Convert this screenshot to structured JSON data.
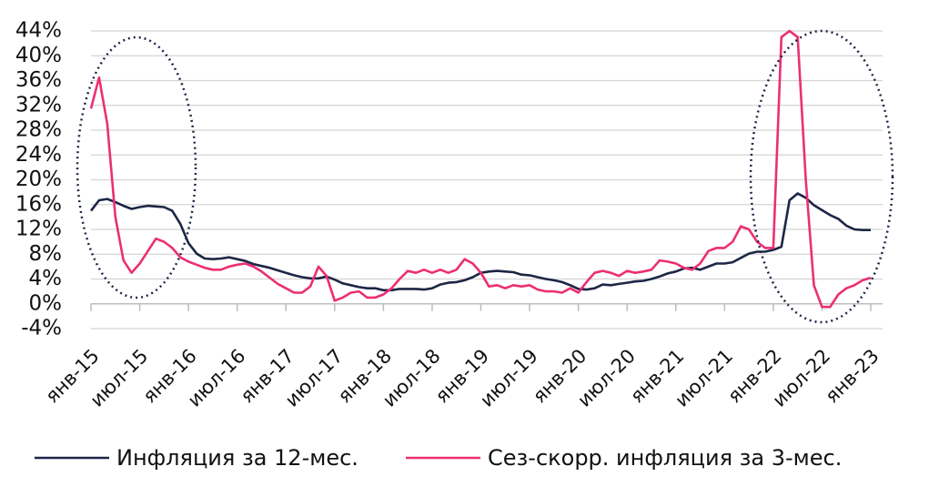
{
  "chart_data": {
    "type": "line",
    "categories": [
      "янв-15",
      null,
      null,
      null,
      null,
      null,
      "июл-15",
      null,
      null,
      null,
      null,
      null,
      "янв-16",
      null,
      null,
      null,
      null,
      null,
      "июл-16",
      null,
      null,
      null,
      null,
      null,
      "янв-17",
      null,
      null,
      null,
      null,
      null,
      "июл-17",
      null,
      null,
      null,
      null,
      null,
      "янв-18",
      null,
      null,
      null,
      null,
      null,
      "июл-18",
      null,
      null,
      null,
      null,
      null,
      "янв-19",
      null,
      null,
      null,
      null,
      null,
      "июл-19",
      null,
      null,
      null,
      null,
      null,
      "янв-20",
      null,
      null,
      null,
      null,
      null,
      "июл-20",
      null,
      null,
      null,
      null,
      null,
      "янв-21",
      null,
      null,
      null,
      null,
      null,
      "июл-21",
      null,
      null,
      null,
      null,
      null,
      "янв-22",
      null,
      null,
      null,
      null,
      null,
      "июл-22",
      null,
      null,
      null,
      null,
      null,
      "янв-23"
    ],
    "series": [
      {
        "name": "Инфляция за 12-мес.",
        "color": "#1c2646",
        "values": [
          15.0,
          16.7,
          16.9,
          16.4,
          15.8,
          15.3,
          15.6,
          15.8,
          15.7,
          15.6,
          15.0,
          12.9,
          9.8,
          8.1,
          7.3,
          7.2,
          7.3,
          7.5,
          7.2,
          6.9,
          6.4,
          6.1,
          5.8,
          5.4,
          5.0,
          4.6,
          4.3,
          4.1,
          4.1,
          4.4,
          3.9,
          3.3,
          3.0,
          2.7,
          2.5,
          2.5,
          2.2,
          2.2,
          2.4,
          2.4,
          2.4,
          2.3,
          2.5,
          3.1,
          3.4,
          3.5,
          3.8,
          4.3,
          5.0,
          5.2,
          5.3,
          5.2,
          5.1,
          4.7,
          4.6,
          4.3,
          4.0,
          3.8,
          3.5,
          3.0,
          2.4,
          2.3,
          2.5,
          3.1,
          3.0,
          3.2,
          3.4,
          3.6,
          3.7,
          4.0,
          4.4,
          4.9,
          5.2,
          5.7,
          5.8,
          5.5,
          6.0,
          6.5,
          6.5,
          6.7,
          7.4,
          8.1,
          8.4,
          8.4,
          8.7,
          9.2,
          16.7,
          17.8,
          17.1,
          15.9,
          15.1,
          14.3,
          13.7,
          12.6,
          12.0,
          11.9,
          11.9
        ]
      },
      {
        "name": "Сез-скорр. инфляция за 3-мес.",
        "color": "#ec2f72",
        "values": [
          31.5,
          36.5,
          29,
          14,
          7,
          5,
          6.5,
          8.5,
          10.5,
          10,
          9,
          7.5,
          6.8,
          6.3,
          5.8,
          5.5,
          5.5,
          6,
          6.3,
          6.5,
          6,
          5.2,
          4.2,
          3.2,
          2.5,
          1.8,
          1.8,
          2.8,
          6,
          4.5,
          0.5,
          1,
          1.8,
          2,
          1,
          1,
          1.5,
          2.5,
          4,
          5.3,
          5,
          5.5,
          5,
          5.5,
          5,
          5.5,
          7.2,
          6.5,
          5,
          2.8,
          3,
          2.5,
          3,
          2.8,
          3,
          2.3,
          2,
          2,
          1.8,
          2.5,
          1.8,
          3.5,
          5,
          5.3,
          5,
          4.5,
          5.3,
          5,
          5.2,
          5.5,
          7,
          6.8,
          6.5,
          5.8,
          5.5,
          6.5,
          8.5,
          9,
          9,
          10,
          12.5,
          12,
          10,
          9,
          9,
          43,
          44,
          43,
          20,
          3,
          -0.5,
          -0.5,
          1.5,
          2.5,
          3,
          3.8,
          4.2
        ]
      }
    ],
    "ylim": [
      -4,
      44
    ],
    "yticks": [
      {
        "value": -4,
        "label": "-4%"
      },
      {
        "value": 0,
        "label": "0%"
      },
      {
        "value": 4,
        "label": "4%"
      },
      {
        "value": 8,
        "label": "8%"
      },
      {
        "value": 12,
        "label": "12%"
      },
      {
        "value": 16,
        "label": "16%"
      },
      {
        "value": 20,
        "label": "20%"
      },
      {
        "value": 24,
        "label": "24%"
      },
      {
        "value": 28,
        "label": "28%"
      },
      {
        "value": 32,
        "label": "32%"
      },
      {
        "value": 36,
        "label": "36%"
      },
      {
        "value": 40,
        "label": "40%"
      },
      {
        "value": 44,
        "label": "44%"
      }
    ],
    "grid": true
  }
}
